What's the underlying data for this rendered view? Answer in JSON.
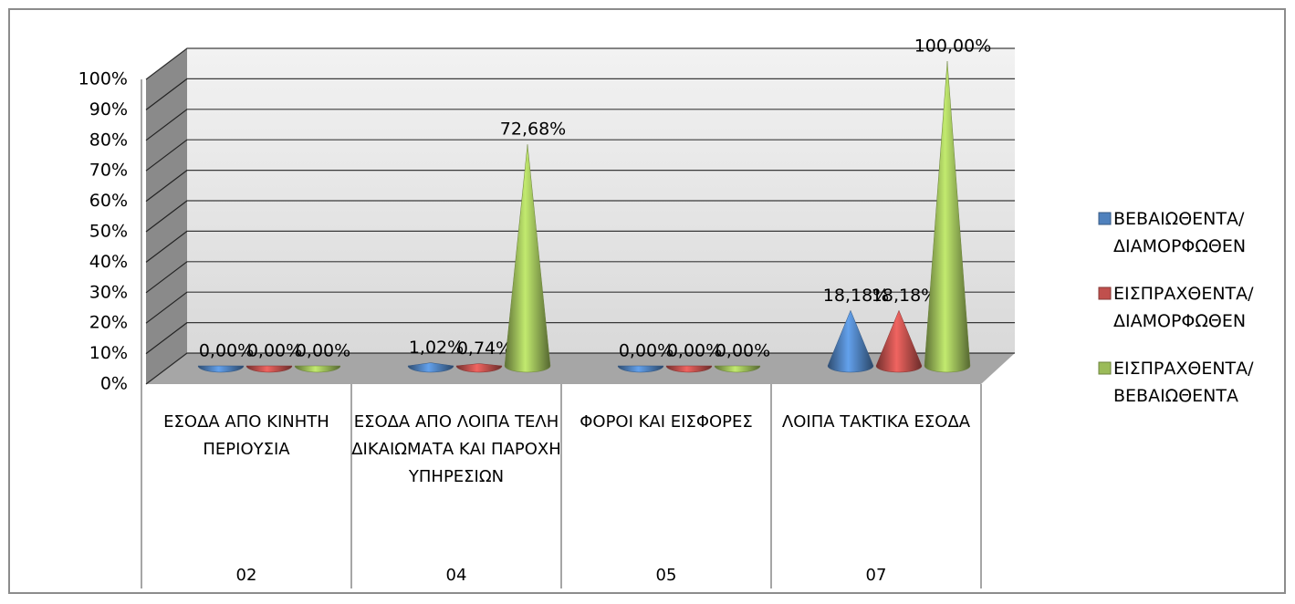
{
  "chart_data": {
    "type": "cone3d",
    "categories": [
      "ΕΣΟΔΑ ΑΠΟ ΚΙΝΗΤΗ ΠΕΡΙΟΥΣΙΑ",
      "ΕΣΟΔΑ ΑΠΟ ΛΟΙΠΑ ΤΕΛΗ ΔΙΚΑΙΩΜΑΤΑ ΚΑΙ ΠΑΡΟΧΗ ΥΠΗΡΕΣΙΩΝ",
      "ΦΟΡΟΙ ΚΑΙ ΕΙΣΦΟΡΕΣ",
      "ΛΟΙΠΑ ΤΑΚΤΙΚΑ ΕΣΟΔΑ"
    ],
    "category_codes": [
      "02",
      "04",
      "05",
      "07"
    ],
    "series": [
      {
        "name": "ΒΕΒΑΙΩΘΕΝΤΑ/ ΔΙΑΜΟΡΦΩΘΕΝ",
        "color": "#4f81bd",
        "values": [
          0,
          1.02,
          0,
          18.18
        ],
        "value_labels": [
          "0,00%",
          "1,02%",
          "0,00%",
          "18,18%"
        ]
      },
      {
        "name": "ΕΙΣΠΡΑΧΘΕΝΤΑ/ ΔΙΑΜΟΡΦΩΘΕΝ",
        "color": "#c0504d",
        "values": [
          0,
          0.74,
          0,
          18.18
        ],
        "value_labels": [
          "0,00%",
          "0,74%",
          "0,00%",
          "18,18%"
        ]
      },
      {
        "name": "ΕΙΣΠΡΑΧΘΕΝΤΑ/ ΒΕΒΑΙΩΘΕΝΤΑ",
        "color": "#9bbb59",
        "values": [
          0,
          72.68,
          0,
          100
        ],
        "value_labels": [
          "0,00%",
          "72,68%",
          "0,00%",
          "100,00%"
        ]
      }
    ],
    "ylim": [
      0,
      100
    ],
    "yticks": [
      {
        "value": 0,
        "label": "0%"
      },
      {
        "value": 10,
        "label": "10%"
      },
      {
        "value": 20,
        "label": "20%"
      },
      {
        "value": 30,
        "label": "30%"
      },
      {
        "value": 40,
        "label": "40%"
      },
      {
        "value": 50,
        "label": "50%"
      },
      {
        "value": 60,
        "label": "60%"
      },
      {
        "value": 70,
        "label": "70%"
      },
      {
        "value": 80,
        "label": "80%"
      },
      {
        "value": 90,
        "label": "90%"
      },
      {
        "value": 100,
        "label": "100%"
      }
    ],
    "grid": true,
    "legend": "right"
  }
}
